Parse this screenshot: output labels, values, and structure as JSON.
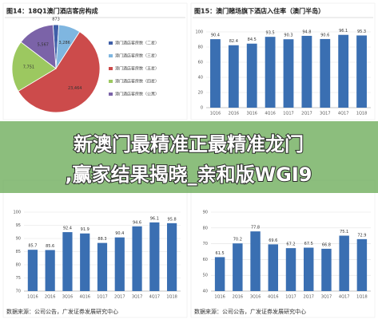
{
  "chart_data": [
    {
      "type": "pie",
      "title": "图14：18Q1澳门酒店客房构成",
      "categories": [
        "澳门酒店客房数（二星）",
        "澳门酒店客房数（三星）",
        "澳门酒店客房数（五星）",
        "澳门酒店客房数（四星）",
        "澳门酒店客房数（公寓）"
      ],
      "values": [
        873,
        3286,
        23464,
        7751,
        5567
      ],
      "value_labels": [
        "873",
        "3,286",
        "23,464",
        "7,751",
        "5,567"
      ],
      "colors": [
        "#3f5fa8",
        "#7fb6e0",
        "#cc4b4b",
        "#9cc860",
        "#7b63a8"
      ]
    },
    {
      "type": "bar",
      "title": "图15：澳门赌场旗下酒店入住率（澳门半岛）",
      "categories": [
        "1Q16",
        "2Q16",
        "3Q16",
        "4Q16",
        "1Q17",
        "2Q17",
        "3Q17",
        "4Q17",
        "1Q18"
      ],
      "values": [
        90.4,
        82.4,
        84.5,
        93.5,
        90.3,
        94.8,
        90.6,
        96.1,
        95.3
      ],
      "color": "#3a6fb2",
      "ylim": [
        0,
        100
      ],
      "yticks": [
        0,
        20,
        40,
        60,
        80,
        100
      ],
      "grid": true
    },
    {
      "type": "bar",
      "categories": [
        "1Q16",
        "2Q16",
        "3Q16",
        "4Q16",
        "1Q17",
        "2Q17",
        "3Q17",
        "4Q17",
        "1Q18"
      ],
      "values": [
        85.7,
        85.6,
        92.4,
        91.9,
        88.3,
        90.4,
        94.6,
        96.1,
        95.8
      ],
      "color": "#3a6fb2",
      "ylim": [
        70,
        100
      ],
      "yticks": [
        70,
        75,
        80,
        85,
        90,
        95,
        100
      ],
      "grid": true,
      "source": "数据来源：公司公告，广发证券发展研究中心"
    },
    {
      "type": "bar",
      "categories": [
        "1Q16",
        "2Q16",
        "3Q16",
        "4Q16",
        "1Q17",
        "2Q17",
        "3Q17",
        "4Q17",
        "1Q18"
      ],
      "values": [
        61.5,
        70.2,
        77.8,
        69.6,
        67.2,
        67.5,
        66.8,
        75.1,
        72.9
      ],
      "color": "#3a6fb2",
      "ylim": [
        40,
        90
      ],
      "yticks": [
        40,
        50,
        60,
        70,
        80,
        90
      ],
      "grid": true,
      "source": "数据来源：公司公告，广发证券发展研究中心"
    }
  ],
  "overlay_text": [
    "新澳门最精准正最精准龙门",
    ",赢家结果揭晓_亲和版WGI9"
  ]
}
